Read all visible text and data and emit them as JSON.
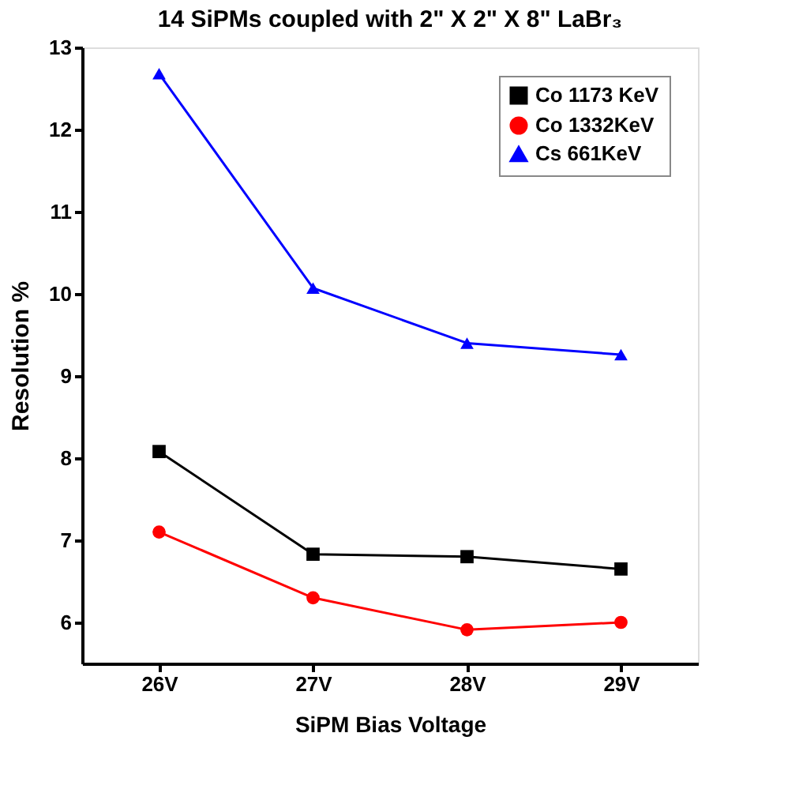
{
  "chart_data": {
    "type": "line",
    "title": "14 SiPMs coupled with 2\" X 2\" X 8\" LaBr₃",
    "xlabel": "SiPM Bias Voltage",
    "ylabel": "Resolution %",
    "categories": [
      "26V",
      "27V",
      "28V",
      "29V"
    ],
    "series": [
      {
        "name": "Co 1173 KeV",
        "color": "#000000",
        "marker": "square",
        "values": [
          8.08,
          6.83,
          6.8,
          6.65
        ]
      },
      {
        "name": "Co 1332KeV",
        "color": "#ff0000",
        "marker": "circle",
        "values": [
          7.1,
          6.3,
          5.91,
          6.0
        ]
      },
      {
        "name": "Cs 661KeV",
        "color": "#0000ff",
        "marker": "triangle",
        "values": [
          12.68,
          10.07,
          9.4,
          9.26
        ]
      }
    ],
    "ylim": [
      5.5,
      13
    ],
    "yticks": [
      6,
      7,
      8,
      9,
      10,
      11,
      12,
      13
    ],
    "grid": false,
    "legend": "top right",
    "line_style": "solid"
  }
}
